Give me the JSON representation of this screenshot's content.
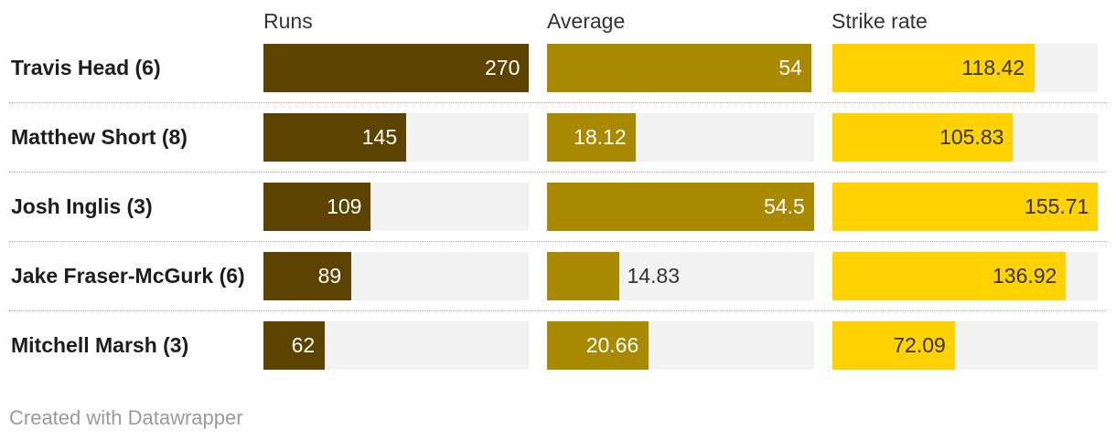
{
  "chart_data": {
    "type": "bar",
    "orientation": "horizontal",
    "categories": [
      "Travis Head (6)",
      "Matthew Short (8)",
      "Josh Inglis (3)",
      "Jake Fraser-McGurk (6)",
      "Mitchell Marsh (3)"
    ],
    "series": [
      {
        "name": "Runs",
        "values": [
          270,
          145,
          109,
          89,
          62
        ],
        "range": [
          0,
          270
        ],
        "color": "#5c4400",
        "label_color": "#ffffff"
      },
      {
        "name": "Average",
        "values": [
          54,
          18.12,
          54.5,
          14.83,
          20.66
        ],
        "range": [
          0,
          54.5
        ],
        "color": "#a98900",
        "label_color": "#ffffff"
      },
      {
        "name": "Strike rate",
        "values": [
          118.42,
          105.83,
          155.71,
          136.92,
          72.09
        ],
        "range": [
          0,
          155.71
        ],
        "color": "#ffd200",
        "label_color": "#333333"
      }
    ],
    "outside_label_color": "#333333",
    "grid": false
  },
  "footer": {
    "credit": "Created with Datawrapper"
  }
}
